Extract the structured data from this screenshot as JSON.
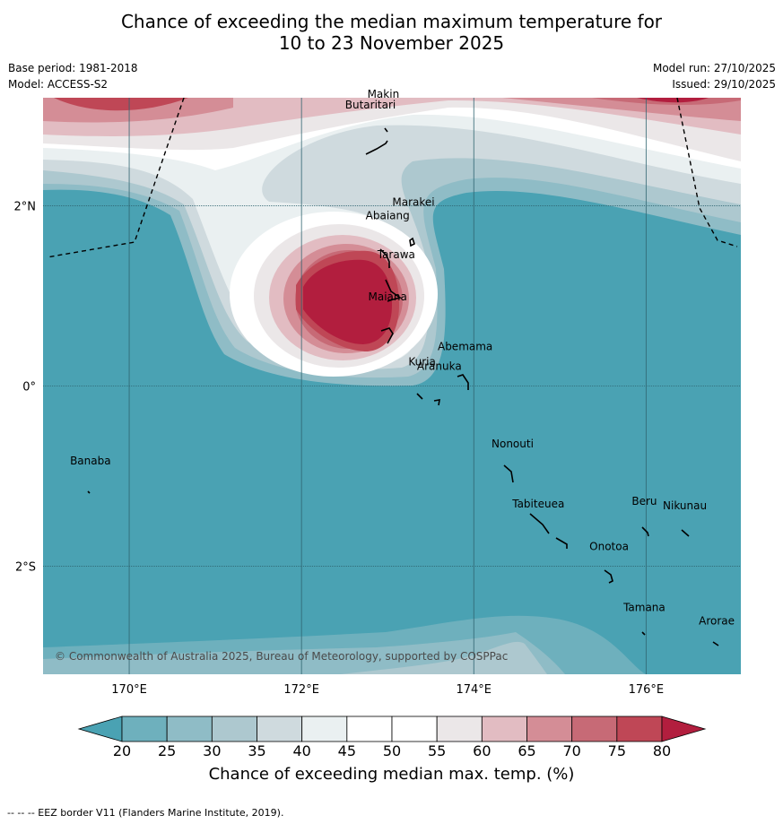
{
  "title_line1": "Chance of exceeding the median maximum temperature for",
  "title_line2": "10 to 23 November 2025",
  "meta": {
    "base_period": "Base period: 1981-2018",
    "model": "Model: ACCESS-S2",
    "model_run": "Model run: 27/10/2025",
    "issued": "Issued: 29/10/2025"
  },
  "map": {
    "lon_range": [
      169,
      177.1
    ],
    "lat_range": [
      -3.2,
      3.2
    ],
    "lon_ticks": [
      {
        "lon": 170,
        "label": "170°E"
      },
      {
        "lon": 172,
        "label": "172°E"
      },
      {
        "lon": 174,
        "label": "174°E"
      },
      {
        "lon": 176,
        "label": "176°E"
      }
    ],
    "lat_ticks": [
      {
        "lat": 2,
        "label": "2°N"
      },
      {
        "lat": 0,
        "label": "0°"
      },
      {
        "lat": -2,
        "label": "2°S"
      }
    ],
    "places": [
      {
        "name": "Makin",
        "lon": 172.95,
        "lat": 3.2
      },
      {
        "name": "Butaritari",
        "lon": 172.8,
        "lat": 3.08
      },
      {
        "name": "Marakei",
        "lon": 173.3,
        "lat": 2.0
      },
      {
        "name": "Abaiang",
        "lon": 173.0,
        "lat": 1.85
      },
      {
        "name": "Tarawa",
        "lon": 173.1,
        "lat": 1.42
      },
      {
        "name": "Maiana",
        "lon": 173.0,
        "lat": 0.95
      },
      {
        "name": "Abemama",
        "lon": 173.9,
        "lat": 0.4
      },
      {
        "name": "Kuria",
        "lon": 173.4,
        "lat": 0.23
      },
      {
        "name": "Aranuka",
        "lon": 173.6,
        "lat": 0.18
      },
      {
        "name": "Nonouti",
        "lon": 174.45,
        "lat": -0.68
      },
      {
        "name": "Banaba",
        "lon": 169.55,
        "lat": -0.87
      },
      {
        "name": "Beru",
        "lon": 175.98,
        "lat": -1.32
      },
      {
        "name": "Tabiteuea",
        "lon": 174.75,
        "lat": -1.35
      },
      {
        "name": "Nikunau",
        "lon": 176.45,
        "lat": -1.37
      },
      {
        "name": "Onotoa",
        "lon": 175.57,
        "lat": -1.82
      },
      {
        "name": "Tamana",
        "lon": 175.98,
        "lat": -2.5
      },
      {
        "name": "Arorae",
        "lon": 176.82,
        "lat": -2.65
      }
    ],
    "copyright": "© Commonwealth of Australia 2025, Bureau of Meteorology, supported by COSPPac"
  },
  "colorbar": {
    "ticks": [
      "20",
      "25",
      "30",
      "35",
      "40",
      "45",
      "50",
      "55",
      "60",
      "65",
      "70",
      "75",
      "80"
    ],
    "colors": [
      "#4aa2b3",
      "#6eb0bd",
      "#8fbcc6",
      "#adc8cf",
      "#cfdade",
      "#eaf0f1",
      "#ffffff",
      "#ffffff",
      "#ebe7e8",
      "#e2bcc2",
      "#d48d96",
      "#c76a76",
      "#bf4756",
      "#b21e3e"
    ],
    "label": "Chance of exceeding median max. temp. (%)"
  },
  "footnote": "--  --  -- EEZ border V11 (Flanders Marine Institute, 2019)."
}
